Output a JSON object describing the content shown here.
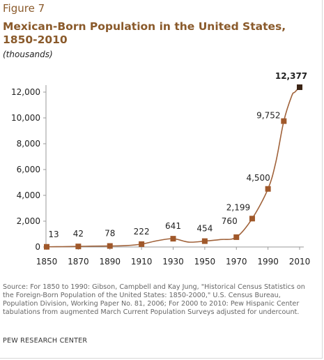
{
  "figure_label": "Figure 7",
  "title": "Mexican-Born Population in the United States, 1850-2010",
  "subtitle": "(thousands)",
  "source": "Source: For 1850 to 1990: Gibson, Campbell and Kay Jung, \"Historical Census Statistics on the Foreign-Born Population of the United States: 1850-2000,\" U.S. Census Bureau, Population Division, Working Paper No. 81, 2006; For 2000 to 2010: Pew Hispanic Center tabulations from augmented March Current Population Surveys adjusted for undercount.",
  "credit": "PEW RESEARCH CENTER",
  "colors": {
    "line": "#a0623a",
    "marker": "#a0582a",
    "last_marker": "#3b2415",
    "title": "#8a5a2b"
  },
  "chart_data": {
    "type": "line",
    "title": "Mexican-Born Population in the United States, 1850-2010",
    "ylabel": "(thousands)",
    "xlim": [
      1850,
      2010
    ],
    "ylim": [
      0,
      12000
    ],
    "x_ticks": [
      1850,
      1870,
      1890,
      1910,
      1930,
      1950,
      1970,
      1990,
      2010
    ],
    "y_ticks": [
      0,
      2000,
      4000,
      6000,
      8000,
      10000,
      12000
    ],
    "y_tick_labels": [
      "0",
      "2,000",
      "4,000",
      "6,000",
      "8,000",
      "10,000",
      "12,000"
    ],
    "grid": false,
    "legend": "none",
    "line_series": {
      "x": [
        1850,
        1860,
        1870,
        1880,
        1890,
        1900,
        1910,
        1920,
        1930,
        1940,
        1950,
        1960,
        1970,
        1980,
        1990,
        1995,
        2000,
        2005,
        2007,
        2010
      ],
      "y": [
        13,
        27,
        42,
        68,
        78,
        103,
        222,
        486,
        641,
        377,
        454,
        576,
        760,
        2199,
        4500,
        6600,
        9752,
        11700,
        12000,
        12377
      ]
    },
    "markers": {
      "x": [
        1850,
        1870,
        1890,
        1910,
        1930,
        1950,
        1970,
        1980,
        1990,
        2000,
        2010
      ],
      "y": [
        13,
        42,
        78,
        222,
        641,
        454,
        760,
        2199,
        4500,
        9752,
        12377
      ],
      "labels": [
        "13",
        "42",
        "78",
        "222",
        "641",
        "454",
        "760",
        "2,199",
        "4,500",
        "9,752",
        "12,377"
      ]
    }
  }
}
